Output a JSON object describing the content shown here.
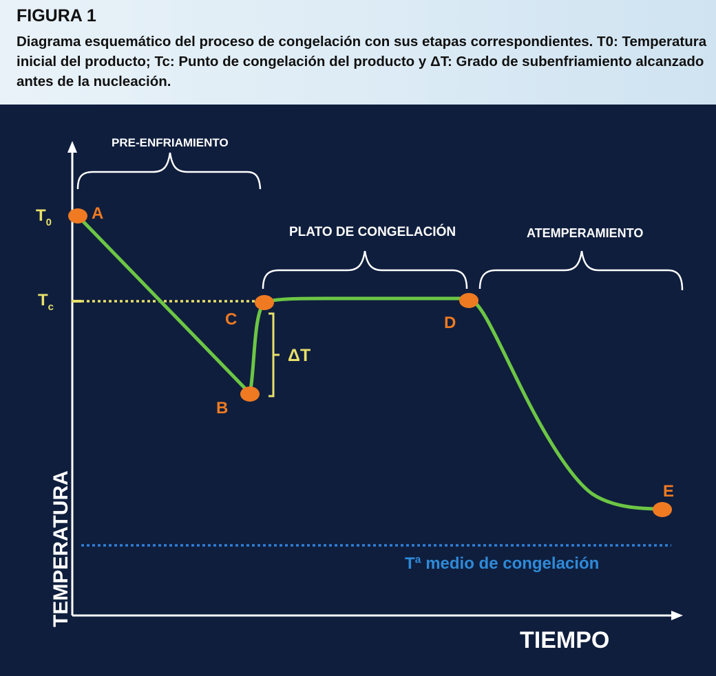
{
  "figure": {
    "label": "FIGURA 1",
    "caption": "Diagrama esquemático del proceso de congelación con sus etapas correspondientes. T0: Temperatura inicial del producto; Tc: Punto de congelación del producto y ΔT: Grado de subenfriamiento alcanzado antes de la nucleación."
  },
  "diagram": {
    "axis_y_label": "TEMPERATURA",
    "axis_x_label": "TIEMPO",
    "t0_label": "T",
    "t0_sub": "0",
    "tc_label": "T",
    "tc_sub": "c",
    "delta_label": "ΔT",
    "medium_label": "Tª medio de congelación",
    "stages": {
      "pre": "PRE-ENFRIAMIENTO",
      "plateau": "PLATO DE CONGELACIÓN",
      "tempering": "ATEMPERAMIENTO"
    },
    "points": {
      "a": "A",
      "b": "B",
      "c": "C",
      "d": "D",
      "e": "E"
    },
    "colors": {
      "background": "#0f1e3d",
      "curve": "#6cc644",
      "points": "#f07a22",
      "tc_line": "#e8e06a",
      "medium_line": "#2f7fd6",
      "axes": "#ffffff"
    }
  }
}
